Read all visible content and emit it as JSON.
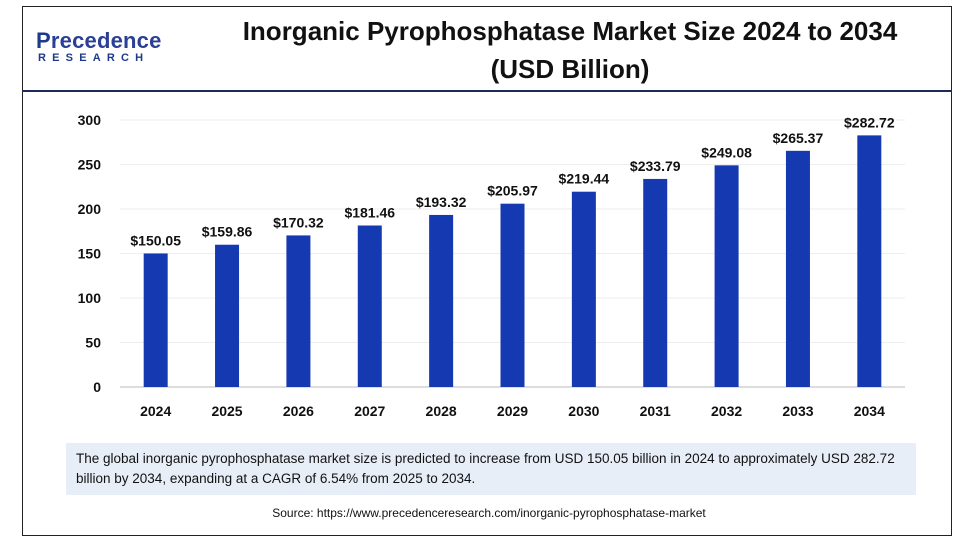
{
  "brand": {
    "logo_first_letter": "P",
    "logo_rest": "recedence",
    "logo_sub": "RESEARCH",
    "color": "#1e3a8a"
  },
  "header": {
    "title_line1": "Inorganic Pyrophosphatase Market Size 2024 to 2034",
    "title_line2": "(USD Billion)"
  },
  "chart_data": {
    "type": "bar",
    "title": "Inorganic Pyrophosphatase Market Size 2024 to 2034 (USD Billion)",
    "categories": [
      "2024",
      "2025",
      "2026",
      "2027",
      "2028",
      "2029",
      "2030",
      "2031",
      "2032",
      "2033",
      "2034"
    ],
    "values": [
      150.05,
      159.86,
      170.32,
      181.46,
      193.32,
      205.97,
      219.44,
      233.79,
      249.08,
      265.37,
      282.72
    ],
    "data_labels": [
      "$150.05",
      "$159.86",
      "$170.32",
      "$181.46",
      "$193.32",
      "$205.97",
      "$219.44",
      "$233.79",
      "$249.08",
      "$265.37",
      "$282.72"
    ],
    "yticks": [
      0,
      50,
      100,
      150,
      200,
      250,
      300
    ],
    "ylim": [
      0,
      300
    ],
    "bar_color": "#1539b0",
    "grid": false
  },
  "note": {
    "text": "The global inorganic pyrophosphatase market size is predicted to increase from USD 150.05 billion in 2024 to approximately USD 282.72 billion by 2034, expanding at a CAGR of 6.54% from 2025 to 2034."
  },
  "source": {
    "text": "Source: https://www.precedenceresearch.com/inorganic-pyrophosphatase-market"
  }
}
